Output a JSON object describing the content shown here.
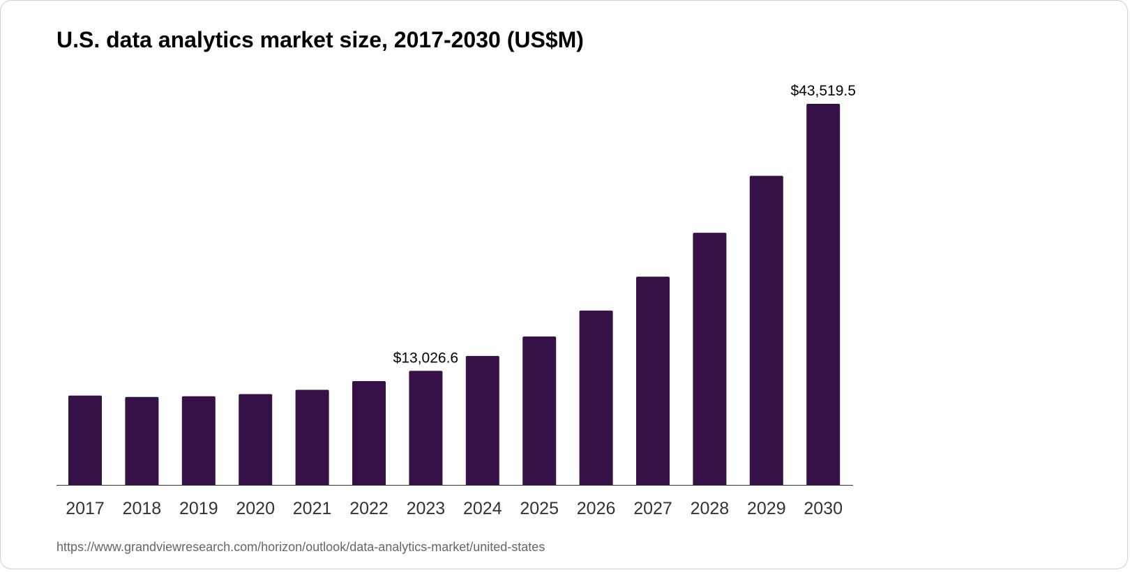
{
  "chart_data": {
    "type": "bar",
    "title": "U.S. data analytics market size, 2017-2030 (US$M)",
    "xlabel": "",
    "ylabel": "",
    "categories": [
      "2017",
      "2018",
      "2019",
      "2020",
      "2021",
      "2022",
      "2023",
      "2024",
      "2025",
      "2026",
      "2027",
      "2028",
      "2029",
      "2030"
    ],
    "values": [
      10200,
      10040,
      10120,
      10370,
      10860,
      11850,
      13026.6,
      14730,
      16950,
      19910,
      23780,
      28790,
      35290,
      43519.5
    ],
    "data_labels": [
      {
        "category": "2023",
        "text": "$13,026.6"
      },
      {
        "category": "2030",
        "text": "$43,519.5"
      }
    ],
    "ylim": [
      0,
      43519.5
    ],
    "grid": false,
    "y_axis_visible": false,
    "bar_color": "#361148"
  },
  "source": "https://www.grandviewresearch.com/horizon/outlook/data-analytics-market/united-states"
}
